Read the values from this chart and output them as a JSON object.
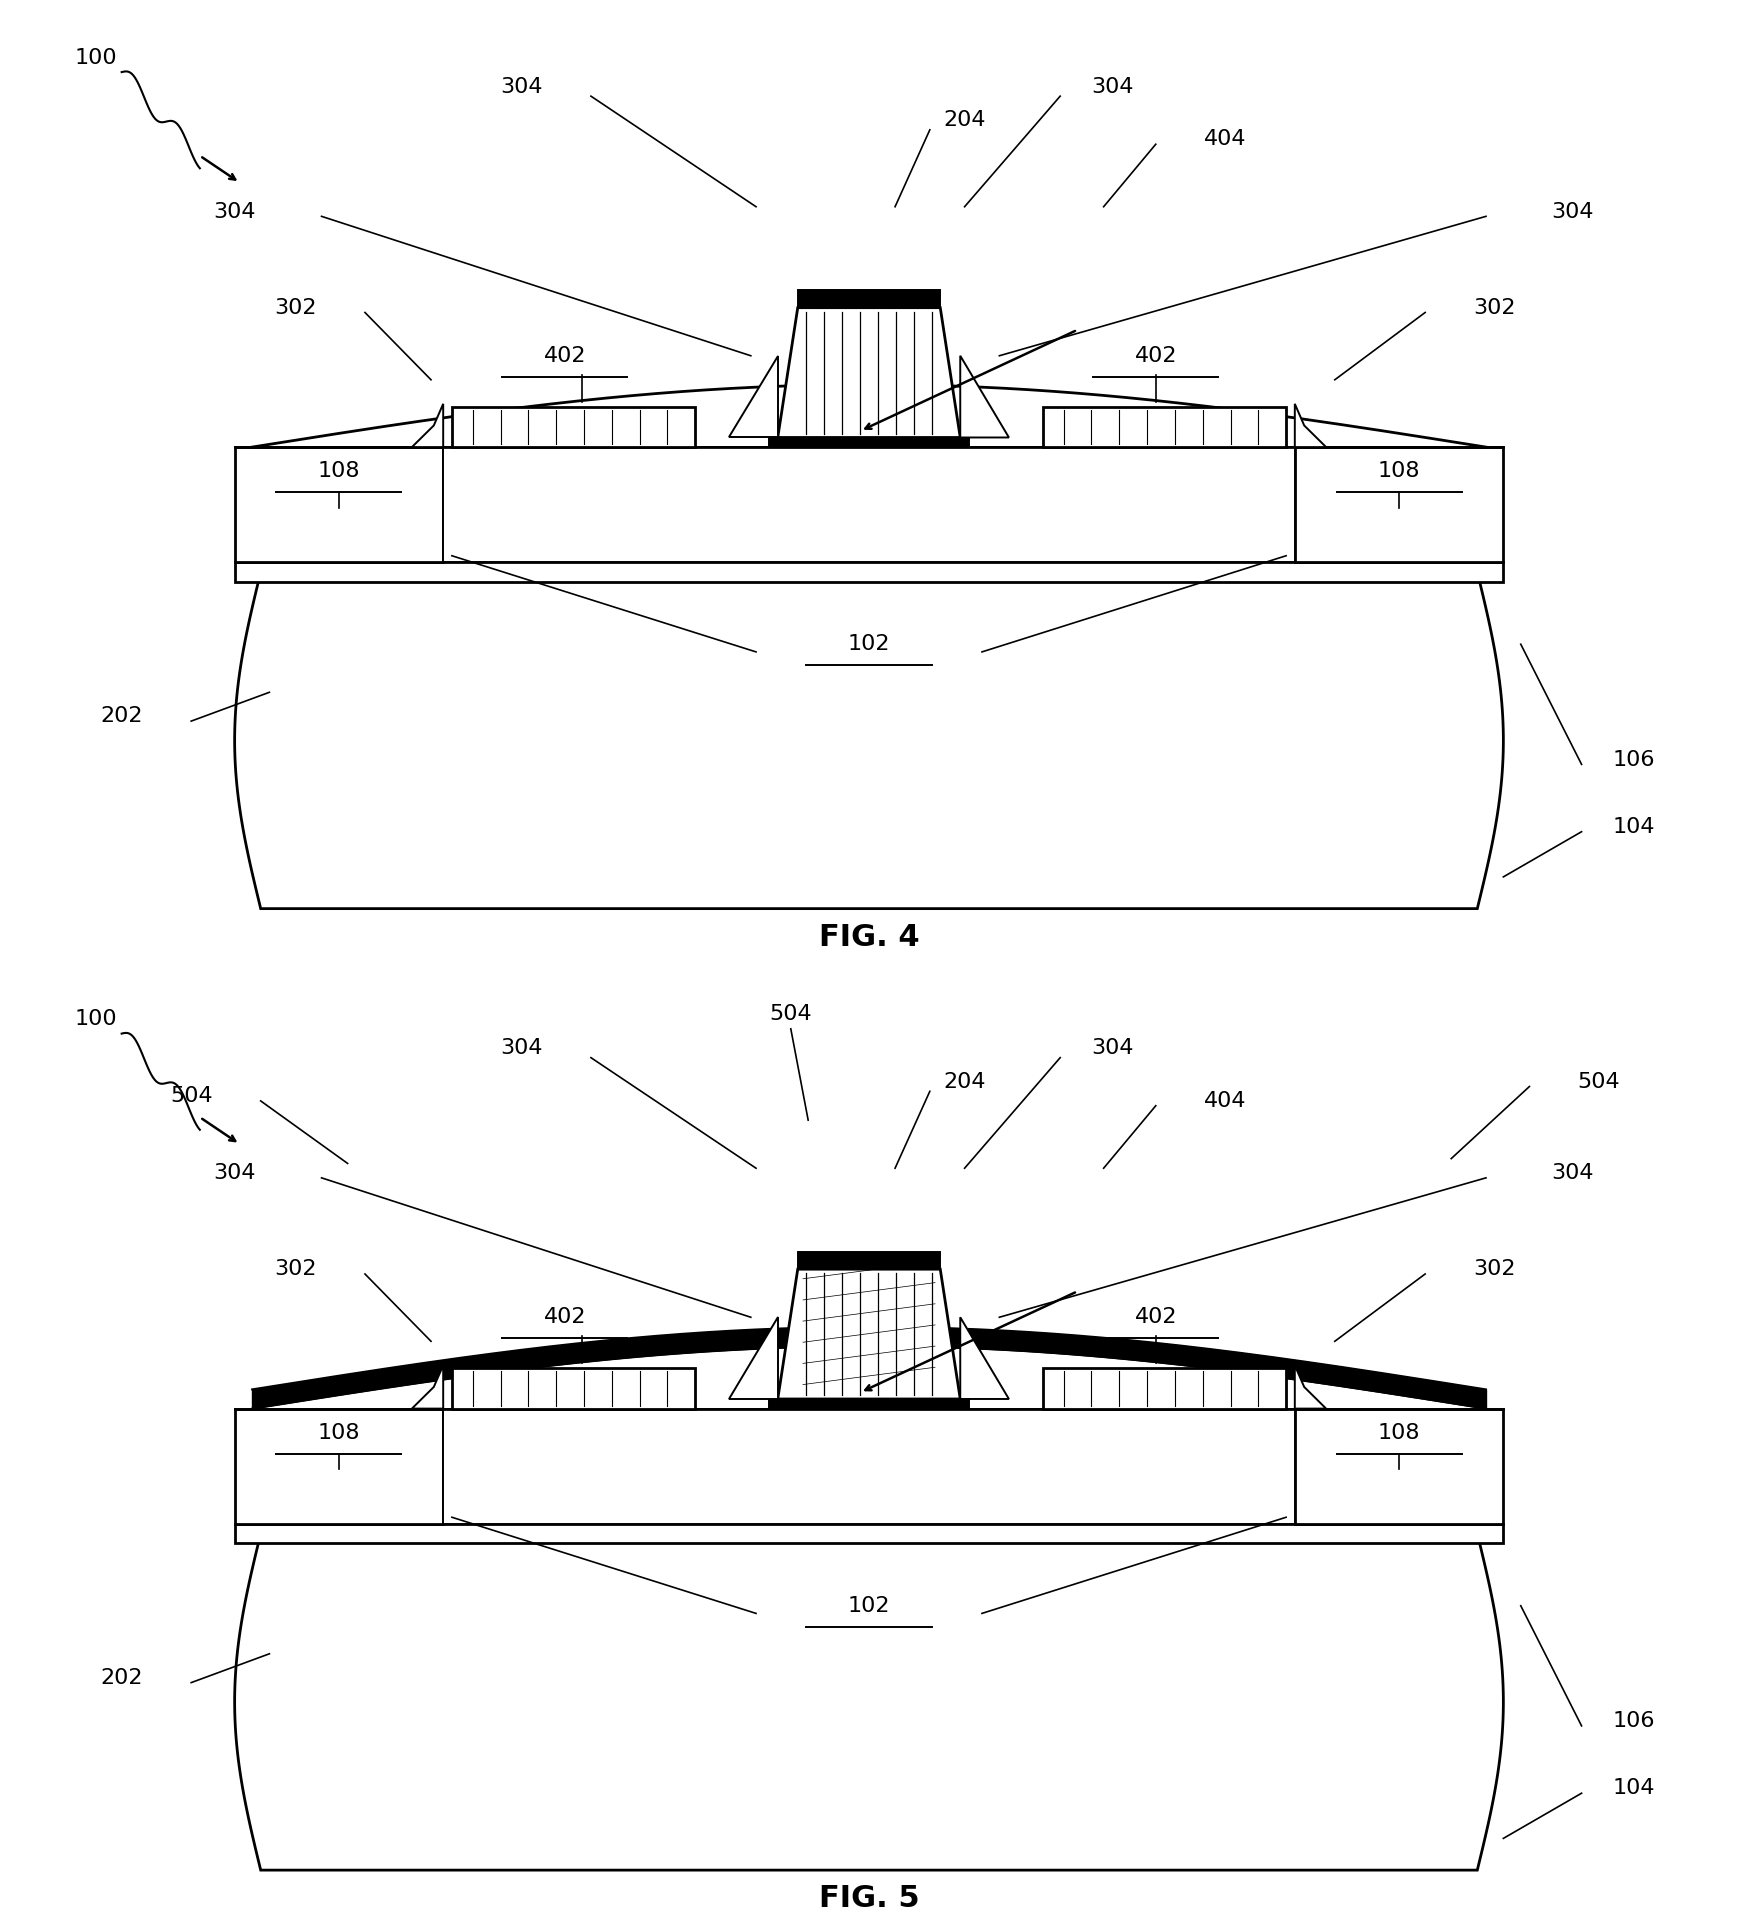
{
  "bg": "#ffffff",
  "lw_thin": 1.4,
  "lw_med": 2.0,
  "lw_thick": 3.0,
  "fs": 16,
  "fs_title": 22
}
